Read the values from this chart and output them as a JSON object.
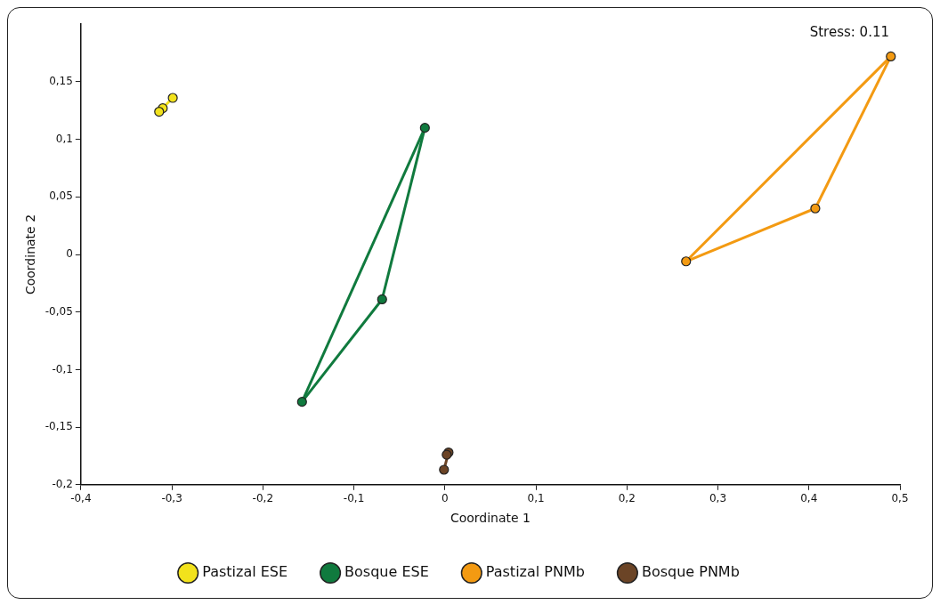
{
  "chart_data": {
    "type": "scatter",
    "xlabel": "Coordinate 1",
    "ylabel": "Coordinate 2",
    "annotations": [
      "Stress: 0.11"
    ],
    "xlim": [
      -0.4,
      0.5
    ],
    "ylim": [
      -0.2,
      0.2
    ],
    "xticks": [
      {
        "value": -0.4,
        "label": "-0,4"
      },
      {
        "value": -0.3,
        "label": "-0,3"
      },
      {
        "value": -0.2,
        "label": "-0,2"
      },
      {
        "value": -0.1,
        "label": "-0,1"
      },
      {
        "value": 0,
        "label": "0"
      },
      {
        "value": 0.1,
        "label": "0,1"
      },
      {
        "value": 0.2,
        "label": "0,2"
      },
      {
        "value": 0.3,
        "label": "0,3"
      },
      {
        "value": 0.4,
        "label": "0,4"
      },
      {
        "value": 0.5,
        "label": "0,5"
      }
    ],
    "yticks": [
      {
        "value": -0.2,
        "label": "-0,2"
      },
      {
        "value": -0.15,
        "label": "-0,15"
      },
      {
        "value": -0.1,
        "label": "-0,1"
      },
      {
        "value": -0.05,
        "label": "-0,05"
      },
      {
        "value": 0,
        "label": "0"
      },
      {
        "value": 0.05,
        "label": "0,05"
      },
      {
        "value": 0.1,
        "label": "0,1"
      },
      {
        "value": 0.15,
        "label": "0,15"
      }
    ],
    "grid": false,
    "legend": "bottom",
    "marker": "circle",
    "line_style": "solid",
    "series": [
      {
        "name": "Pastizal ESE",
        "color": "#f2e21c",
        "x": [
          -0.299,
          -0.31,
          -0.314
        ],
        "values": [
          0.136,
          0.127,
          0.124
        ]
      },
      {
        "name": "Bosque ESE",
        "color": "#107a3e",
        "x": [
          -0.022,
          -0.069,
          -0.157
        ],
        "values": [
          0.11,
          -0.039,
          -0.128
        ]
      },
      {
        "name": "Pastizal PNMb",
        "color": "#f39a12",
        "x": [
          0.49,
          0.407,
          0.265
        ],
        "values": [
          0.172,
          0.04,
          -0.006
        ]
      },
      {
        "name": "Bosque PNMb",
        "color": "#6b4426",
        "x": [
          0.004,
          0.002,
          -0.001
        ],
        "values": [
          -0.172,
          -0.174,
          -0.187
        ]
      },
      {
        "type": "line",
        "marker": "none",
        "color": "#f2e21c",
        "x": [
          -0.314,
          -0.299
        ],
        "values": [
          0.124,
          0.136
        ]
      },
      {
        "type": "line",
        "marker": "none",
        "color": "#107a3e",
        "x": [
          -0.157,
          -0.069
        ],
        "values": [
          -0.128,
          -0.039
        ]
      },
      {
        "type": "line",
        "marker": "none",
        "color": "#107a3e",
        "x": [
          -0.069,
          -0.022
        ],
        "values": [
          -0.039,
          0.11
        ]
      },
      {
        "type": "line",
        "marker": "none",
        "color": "#107a3e",
        "x": [
          -0.157,
          -0.022
        ],
        "values": [
          -0.128,
          0.11
        ]
      },
      {
        "type": "line",
        "marker": "none",
        "color": "#f39a12",
        "x": [
          0.265,
          0.407
        ],
        "values": [
          -0.006,
          0.04
        ]
      },
      {
        "type": "line",
        "marker": "none",
        "color": "#f39a12",
        "x": [
          0.407,
          0.49
        ],
        "values": [
          0.04,
          0.172
        ]
      },
      {
        "type": "line",
        "marker": "none",
        "color": "#f39a12",
        "x": [
          0.265,
          0.49
        ],
        "values": [
          -0.006,
          0.172
        ]
      },
      {
        "type": "line",
        "marker": "none",
        "color": "#6b4426",
        "x": [
          -0.001,
          0.004
        ],
        "values": [
          -0.187,
          -0.172
        ]
      }
    ]
  }
}
